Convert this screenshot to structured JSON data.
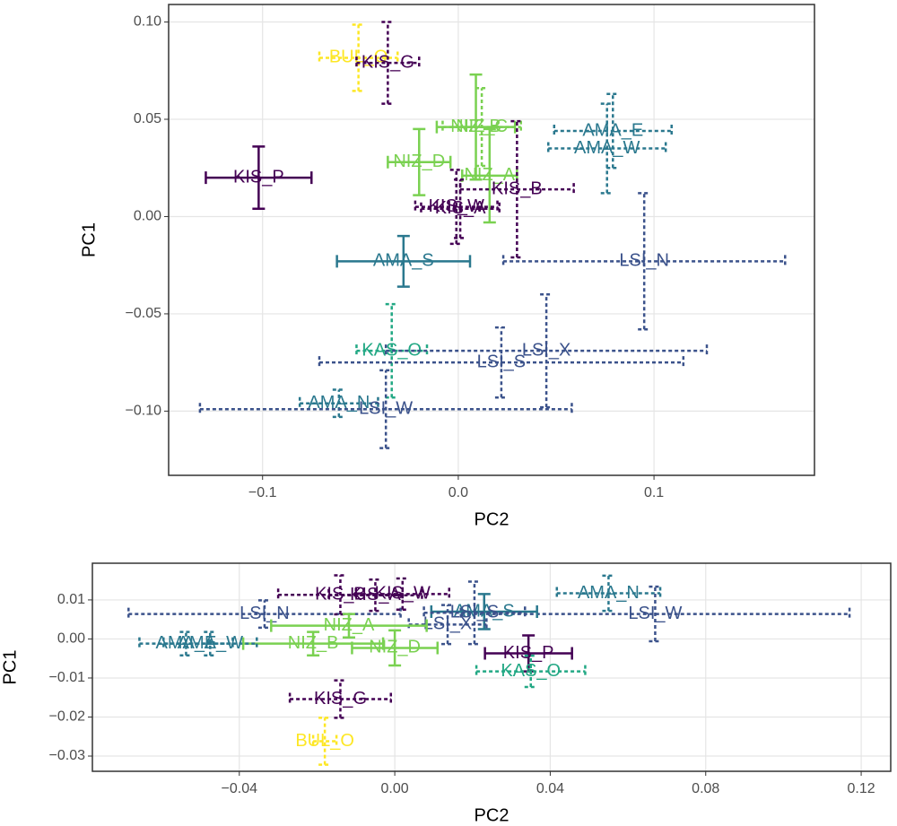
{
  "chart_data": [
    {
      "type": "scatter",
      "xlabel": "PC2",
      "ylabel": "PC1",
      "grid": true,
      "xlim": [
        -0.148,
        0.182
      ],
      "ylim": [
        -0.133,
        0.109
      ],
      "xticks": [
        {
          "value": -0.1,
          "label": "−0.1"
        },
        {
          "value": 0,
          "label": "0.0"
        },
        {
          "value": 0.1,
          "label": "0.1"
        }
      ],
      "yticks": [
        {
          "value": 0.1,
          "label": "0.10"
        },
        {
          "value": 0.05,
          "label": "0.05"
        },
        {
          "value": 0,
          "label": "0.00"
        },
        {
          "value": -0.05,
          "label": "−0.05"
        },
        {
          "value": -0.1,
          "label": "−0.10"
        }
      ],
      "series": [
        {
          "name": "BUL_O",
          "color": "#FDE725",
          "line_style": "dashed",
          "x": [
            -0.051
          ],
          "values": [
            0.0816
          ],
          "xerr": [
            0.02
          ],
          "yerr": [
            0.017
          ]
        },
        {
          "name": "KIS_G",
          "color": "#440154",
          "line_style": "dashed",
          "x": [
            -0.036
          ],
          "values": [
            0.079
          ],
          "xerr": [
            0.016
          ],
          "yerr": [
            0.021
          ]
        },
        {
          "name": "NIZ_C",
          "color": "#7AD151",
          "line_style": "dashed",
          "x": [
            0.012
          ],
          "values": [
            0.046
          ],
          "xerr": [
            0.02
          ],
          "yerr": [
            0.02
          ]
        },
        {
          "name": "NIZ_B",
          "color": "#7AD151",
          "line_style": "solid",
          "x": [
            0.009
          ],
          "values": [
            0.046
          ],
          "xerr": [
            0.02
          ],
          "yerr": [
            0.027
          ]
        },
        {
          "name": "NIZ_D",
          "color": "#7AD151",
          "line_style": "solid",
          "x": [
            -0.02
          ],
          "values": [
            0.028
          ],
          "xerr": [
            0.016
          ],
          "yerr": [
            0.017
          ]
        },
        {
          "name": "NIZ_A",
          "color": "#7AD151",
          "line_style": "solid",
          "x": [
            0.016
          ],
          "values": [
            0.021
          ],
          "xerr": [
            0.014
          ],
          "yerr": [
            0.024
          ]
        },
        {
          "name": "KIS_B",
          "color": "#440154",
          "line_style": "dashed",
          "x": [
            0.03
          ],
          "values": [
            0.014
          ],
          "xerr": [
            0.029
          ],
          "yerr": [
            0.035
          ]
        },
        {
          "name": "KIS_P",
          "color": "#440154",
          "line_style": "solid",
          "x": [
            -0.102
          ],
          "values": [
            0.02
          ],
          "xerr": [
            0.027
          ],
          "yerr": [
            0.016
          ]
        },
        {
          "name": "KIS_W",
          "color": "#440154",
          "line_style": "dashed",
          "x": [
            -0.001
          ],
          "values": [
            0.005
          ],
          "xerr": [
            0.021
          ],
          "yerr": [
            0.019
          ]
        },
        {
          "name": "KIS_A",
          "color": "#440154",
          "line_style": "dashed",
          "x": [
            0.001
          ],
          "values": [
            0.004
          ],
          "xerr": [
            0.02
          ],
          "yerr": [
            0.015
          ]
        },
        {
          "name": "AMA_E",
          "color": "#2A788E",
          "line_style": "dashed",
          "x": [
            0.079
          ],
          "values": [
            0.044
          ],
          "xerr": [
            0.03
          ],
          "yerr": [
            0.019
          ]
        },
        {
          "name": "AMA_W",
          "color": "#2A788E",
          "line_style": "dashed",
          "x": [
            0.076
          ],
          "values": [
            0.035
          ],
          "xerr": [
            0.03
          ],
          "yerr": [
            0.023
          ]
        },
        {
          "name": "LSI_N",
          "color": "#3B528B",
          "line_style": "dashed",
          "x": [
            0.095
          ],
          "values": [
            -0.023
          ],
          "xerr": [
            0.072
          ],
          "yerr": [
            0.035
          ]
        },
        {
          "name": "AMA_S",
          "color": "#2A788E",
          "line_style": "solid",
          "x": [
            -0.028
          ],
          "values": [
            -0.023
          ],
          "xerr": [
            0.034
          ],
          "yerr": [
            0.013
          ]
        },
        {
          "name": "KAS_O",
          "color": "#22A884",
          "line_style": "dashed",
          "x": [
            -0.034
          ],
          "values": [
            -0.069
          ],
          "xerr": [
            0.018
          ],
          "yerr": [
            0.024
          ]
        },
        {
          "name": "LSI_X",
          "color": "#3B528B",
          "line_style": "dashed",
          "x": [
            0.045
          ],
          "values": [
            -0.069
          ],
          "xerr": [
            0.082
          ],
          "yerr": [
            0.029
          ]
        },
        {
          "name": "LSI_S",
          "color": "#3B528B",
          "line_style": "dashed",
          "x": [
            0.022
          ],
          "values": [
            -0.075
          ],
          "xerr": [
            0.093
          ],
          "yerr": [
            0.018
          ]
        },
        {
          "name": "AMA_N",
          "color": "#2A788E",
          "line_style": "dashed",
          "x": [
            -0.061
          ],
          "values": [
            -0.096
          ],
          "xerr": [
            0.02
          ],
          "yerr": [
            0.007
          ]
        },
        {
          "name": "LSI_W",
          "color": "#3B528B",
          "line_style": "dashed",
          "x": [
            -0.037
          ],
          "values": [
            -0.099
          ],
          "xerr": [
            0.095
          ],
          "yerr": [
            0.02
          ]
        }
      ]
    },
    {
      "type": "scatter",
      "xlabel": "PC2",
      "ylabel": "PC1",
      "grid": true,
      "xlim": [
        -0.0778,
        0.1276
      ],
      "ylim": [
        -0.0339,
        0.0194
      ],
      "xticks": [
        {
          "value": -0.04,
          "label": "−0.04"
        },
        {
          "value": 0,
          "label": "0.00"
        },
        {
          "value": 0.04,
          "label": "0.04"
        },
        {
          "value": 0.08,
          "label": "0.08"
        },
        {
          "value": 0.12,
          "label": "0.12"
        }
      ],
      "yticks": [
        {
          "value": 0.01,
          "label": "0.01"
        },
        {
          "value": 0,
          "label": "0.00"
        },
        {
          "value": -0.01,
          "label": "−0.01"
        },
        {
          "value": -0.02,
          "label": "−0.02"
        },
        {
          "value": -0.03,
          "label": "−0.03"
        }
      ],
      "series": [
        {
          "name": "AMA_N",
          "color": "#2A788E",
          "line_style": "dashed",
          "x": [
            0.055
          ],
          "values": [
            0.0117
          ],
          "xerr": [
            0.0133
          ],
          "yerr": [
            0.0045
          ]
        },
        {
          "name": "LSI_N",
          "color": "#3B528B",
          "line_style": "dashed",
          "x": [
            -0.0335
          ],
          "values": [
            0.0064
          ],
          "xerr": [
            0.035
          ],
          "yerr": [
            0.0035
          ]
        },
        {
          "name": "LSI_W",
          "color": "#3B528B",
          "line_style": "dashed",
          "x": [
            0.067
          ],
          "values": [
            0.0064
          ],
          "xerr": [
            0.05
          ],
          "yerr": [
            0.007
          ]
        },
        {
          "name": "KIS_B",
          "color": "#440154",
          "line_style": "dashed",
          "x": [
            -0.014
          ],
          "values": [
            0.0113
          ],
          "xerr": [
            0.016
          ],
          "yerr": [
            0.005
          ]
        },
        {
          "name": "KIS_A",
          "color": "#440154",
          "line_style": "dashed",
          "x": [
            -0.005
          ],
          "values": [
            0.0112
          ],
          "xerr": [
            0.012
          ],
          "yerr": [
            0.004
          ]
        },
        {
          "name": "KIS_W",
          "color": "#440154",
          "line_style": "dashed",
          "x": [
            0.002
          ],
          "values": [
            0.0115
          ],
          "xerr": [
            0.012
          ],
          "yerr": [
            0.004
          ]
        },
        {
          "name": "AMA_S",
          "color": "#2A788E",
          "line_style": "solid",
          "x": [
            0.023
          ],
          "values": [
            0.007
          ],
          "xerr": [
            0.0136
          ],
          "yerr": [
            0.0045
          ]
        },
        {
          "name": "LSI_X",
          "color": "#3B528B",
          "line_style": "dashed",
          "x": [
            0.0136
          ],
          "values": [
            0.0037
          ],
          "xerr": [
            0.01
          ],
          "yerr": [
            0.005
          ]
        },
        {
          "name": "LSI_S",
          "color": "#3B528B",
          "line_style": "dashed",
          "x": [
            0.0205
          ],
          "values": [
            0.0067
          ],
          "xerr": [
            0.013
          ],
          "yerr": [
            0.008
          ]
        },
        {
          "name": "NIZ_A",
          "color": "#7AD151",
          "line_style": "solid",
          "x": [
            -0.0118
          ],
          "values": [
            0.0034
          ],
          "xerr": [
            0.02
          ],
          "yerr": [
            0.003
          ]
        },
        {
          "name": "NIZ_D",
          "color": "#7AD151",
          "line_style": "solid",
          "x": [
            0
          ],
          "values": [
            -0.0023
          ],
          "xerr": [
            0.011
          ],
          "yerr": [
            0.0045
          ]
        },
        {
          "name": "NIZ_B",
          "color": "#7AD151",
          "line_style": "solid",
          "x": [
            -0.021
          ],
          "values": [
            -0.0012
          ],
          "xerr": [
            0.018
          ],
          "yerr": [
            0.003
          ]
        },
        {
          "name": "AMA_E",
          "color": "#2A788E",
          "line_style": "dashed",
          "x": [
            -0.0537
          ],
          "values": [
            -0.0012
          ],
          "xerr": [
            0.012
          ],
          "yerr": [
            0.003
          ]
        },
        {
          "name": "AMA_W",
          "color": "#2A788E",
          "line_style": "dashed",
          "x": [
            -0.0475
          ],
          "values": [
            -0.0012
          ],
          "xerr": [
            0.012
          ],
          "yerr": [
            0.003
          ]
        },
        {
          "name": "KIS_P",
          "color": "#440154",
          "line_style": "solid",
          "x": [
            0.0344
          ],
          "values": [
            -0.0037
          ],
          "xerr": [
            0.0112
          ],
          "yerr": [
            0.0046
          ]
        },
        {
          "name": "KAS_O",
          "color": "#22A884",
          "line_style": "dashed",
          "x": [
            0.035
          ],
          "values": [
            -0.0083
          ],
          "xerr": [
            0.014
          ],
          "yerr": [
            0.004
          ]
        },
        {
          "name": "KIS_G",
          "color": "#440154",
          "line_style": "dashed",
          "x": [
            -0.014
          ],
          "values": [
            -0.0154
          ],
          "xerr": [
            0.013
          ],
          "yerr": [
            0.0048
          ]
        },
        {
          "name": "BUL_O",
          "color": "#FDE725",
          "line_style": "dashed",
          "x": [
            -0.018
          ],
          "values": [
            -0.0262
          ],
          "xerr": [
            0.003
          ],
          "yerr": [
            0.006
          ]
        }
      ]
    }
  ]
}
